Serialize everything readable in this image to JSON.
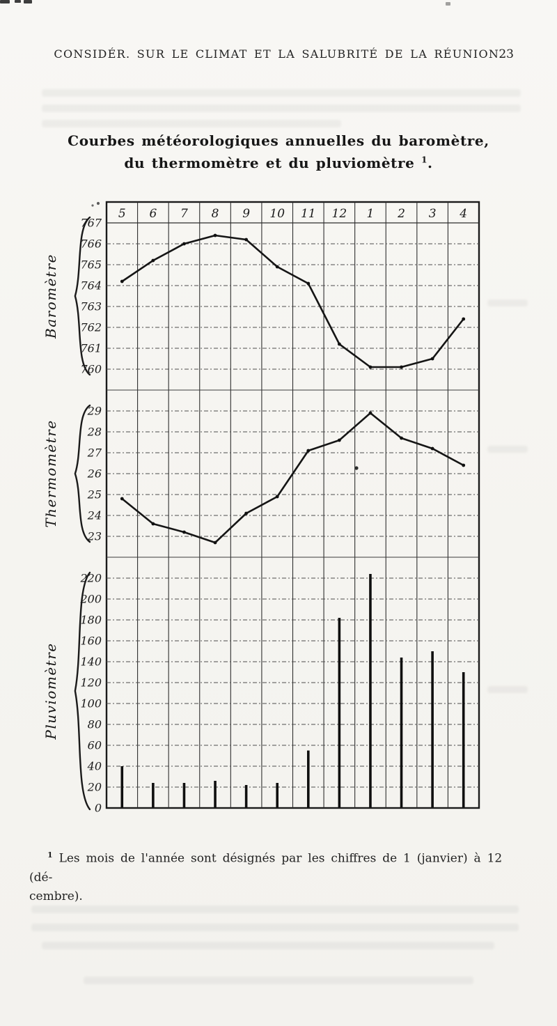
{
  "page": {
    "running_header": "CONSIDÉR. SUR LE CLIMAT ET LA SALUBRITÉ DE LA RÉUNION.",
    "page_number": "23",
    "title": {
      "line1": "Courbes météorologiques annuelles du baromètre,",
      "line2": "du thermomètre et du pluviomètre",
      "footnote_ref": "1",
      "line2_suffix": "."
    },
    "footnote": {
      "marker": "1",
      "line1": "Les mois de l'année sont désignés par les chiffres de 1 (janvier) à 12 (dé-",
      "line2": "cembre)."
    }
  },
  "chart_data": {
    "type": "line",
    "title": "Courbes météorologiques annuelles du baromètre, du thermomètre et du pluviomètre",
    "categories": [
      "5",
      "6",
      "7",
      "8",
      "9",
      "10",
      "11",
      "12",
      "1",
      "2",
      "3",
      "4"
    ],
    "x_axis_position": "top",
    "grid": true,
    "ink_color": "#1a1a1a",
    "panels": [
      {
        "title": "Baromètre",
        "chart_type": "line",
        "ticks": [
          767,
          766,
          765,
          764,
          763,
          762,
          761,
          760
        ],
        "tick_step": 1,
        "ylim": [
          760,
          767
        ],
        "values": [
          764.2,
          765.2,
          766.0,
          766.4,
          766.2,
          764.9,
          764.1,
          761.2,
          760.1,
          760.1,
          760.5,
          762.4
        ]
      },
      {
        "title": "Thermomètre",
        "chart_type": "line",
        "ticks": [
          29,
          28,
          27,
          26,
          25,
          24,
          23
        ],
        "tick_step": 1,
        "ylim": [
          23,
          29
        ],
        "values": [
          24.8,
          23.6,
          23.2,
          22.7,
          24.1,
          24.9,
          27.1,
          27.6,
          28.9,
          27.7,
          27.2,
          26.4
        ]
      },
      {
        "title": "Pluviomètre",
        "chart_type": "bar",
        "ticks": [
          220,
          200,
          180,
          160,
          140,
          120,
          100,
          80,
          60,
          40,
          20,
          0
        ],
        "tick_step": 20,
        "ylim": [
          0,
          220
        ],
        "values": [
          40,
          24,
          24,
          26,
          22,
          24,
          55,
          182,
          224,
          144,
          150,
          130
        ]
      }
    ]
  }
}
